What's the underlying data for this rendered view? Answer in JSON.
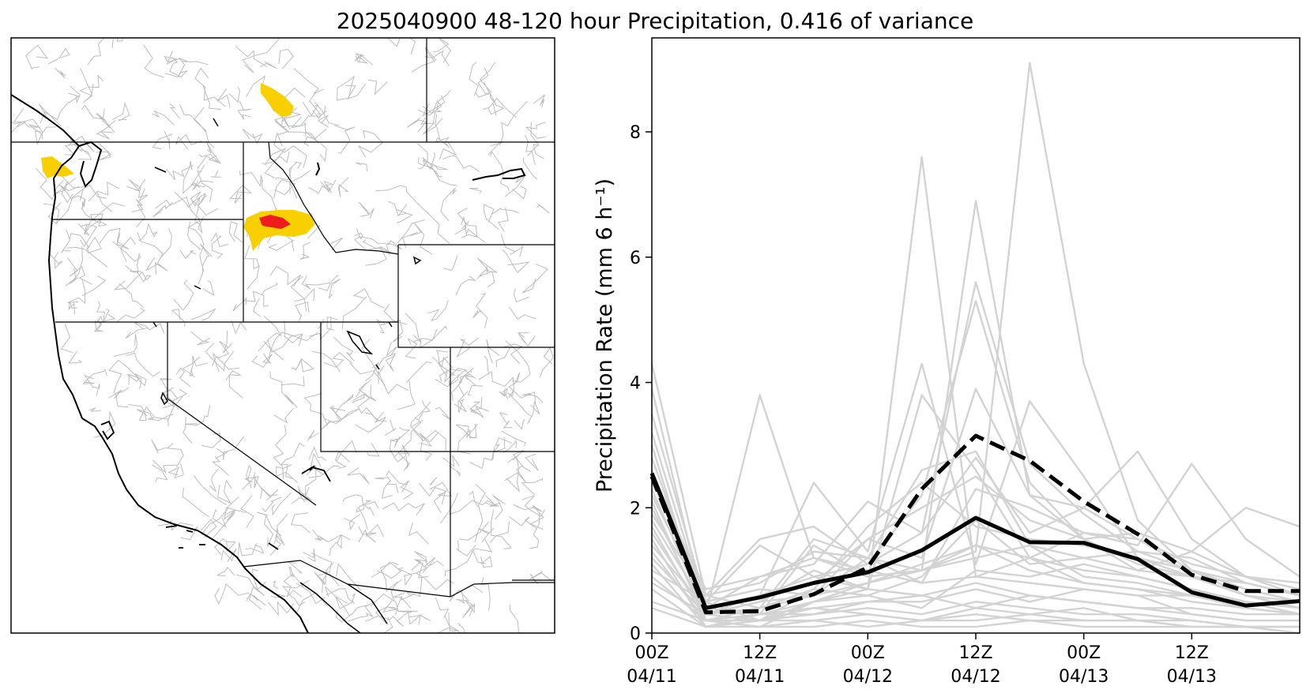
{
  "figure_title": "2025040900 48-120 hour Precipitation, 0.416 of variance",
  "map": {
    "highlight_colors": {
      "moderate": "#f8d000",
      "high": "#ee1c1c"
    },
    "basin_line_color": "#bdbdbd",
    "border_color": "#000000"
  },
  "chart_data": {
    "type": "line",
    "title": "",
    "xlabel": "",
    "ylabel": "Precipitation Rate (mm 6 h⁻¹)",
    "ylim": [
      0,
      9.5
    ],
    "yticks": [
      0,
      2,
      4,
      6,
      8
    ],
    "x": [
      0,
      6,
      12,
      18,
      24,
      30,
      36,
      42,
      48,
      54,
      60,
      66,
      72
    ],
    "xlim": [
      0,
      72
    ],
    "xticks": [
      0,
      12,
      24,
      36,
      48,
      60
    ],
    "xtick_labels": [
      [
        "00Z",
        "04/11"
      ],
      [
        "12Z",
        "04/11"
      ],
      [
        "00Z",
        "04/12"
      ],
      [
        "12Z",
        "04/12"
      ],
      [
        "00Z",
        "04/13"
      ],
      [
        "12Z",
        "04/13"
      ]
    ],
    "grid": false,
    "legend": "none",
    "member_color": "#d3d3d3",
    "members": [
      [
        4.3,
        0.6,
        0.4,
        1.5,
        1.2,
        1.0,
        1.4,
        1.2,
        1.0,
        0.9,
        0.7,
        0.5,
        0.4
      ],
      [
        3.9,
        0.3,
        3.8,
        1.2,
        1.0,
        0.8,
        0.9,
        0.8,
        0.7,
        0.6,
        0.6,
        0.5,
        0.3
      ],
      [
        3.5,
        0.5,
        0.2,
        0.5,
        0.7,
        7.6,
        0.9,
        1.2,
        0.8,
        0.7,
        0.6,
        0.4,
        0.3
      ],
      [
        3.2,
        0.4,
        0.3,
        1.4,
        0.9,
        1.0,
        6.9,
        2.2,
        1.5,
        1.1,
        0.9,
        0.6,
        0.4
      ],
      [
        3.0,
        0.2,
        0.1,
        0.5,
        0.8,
        1.0,
        1.3,
        9.1,
        4.3,
        1.8,
        1.0,
        0.7,
        0.5
      ],
      [
        2.8,
        0.4,
        0.6,
        2.4,
        1.3,
        4.3,
        1.1,
        3.7,
        2.5,
        1.2,
        0.9,
        0.8,
        0.6
      ],
      [
        2.6,
        0.6,
        1.5,
        1.7,
        1.1,
        1.6,
        5.6,
        2.7,
        1.9,
        1.3,
        1.0,
        0.8,
        0.6
      ],
      [
        2.4,
        0.7,
        0.9,
        1.1,
        2.1,
        1.6,
        2.8,
        1.6,
        2.0,
        2.9,
        1.5,
        0.9,
        0.6
      ],
      [
        2.3,
        0.3,
        0.5,
        1.0,
        0.7,
        3.8,
        2.6,
        1.2,
        1.6,
        1.4,
        2.7,
        1.5,
        0.9
      ],
      [
        2.2,
        0.5,
        1.4,
        0.9,
        1.1,
        2.2,
        5.3,
        2.4,
        1.5,
        1.0,
        1.3,
        2.0,
        1.7
      ],
      [
        2.1,
        0.2,
        0.4,
        0.6,
        1.5,
        1.2,
        3.9,
        2.2,
        2.0,
        1.5,
        1.1,
        0.9,
        0.8
      ],
      [
        2.0,
        0.3,
        0.2,
        0.7,
        1.7,
        2.4,
        1.7,
        1.5,
        1.4,
        1.2,
        1.0,
        0.7,
        0.5
      ],
      [
        1.9,
        0.6,
        0.8,
        1.3,
        1.2,
        2.6,
        2.9,
        1.4,
        1.2,
        1.3,
        1.2,
        0.8,
        0.6
      ],
      [
        1.8,
        0.4,
        0.6,
        0.8,
        1.5,
        2.0,
        2.5,
        1.8,
        1.5,
        1.6,
        1.3,
        0.9,
        0.7
      ],
      [
        1.7,
        0.2,
        0.3,
        0.5,
        0.6,
        0.9,
        1.8,
        1.1,
        1.2,
        1.0,
        0.9,
        0.6,
        0.4
      ],
      [
        1.6,
        0.3,
        0.5,
        0.6,
        0.8,
        1.1,
        1.4,
        1.0,
        0.8,
        0.7,
        0.5,
        0.4,
        0.3
      ],
      [
        1.5,
        0.1,
        0.2,
        0.4,
        0.5,
        0.6,
        0.8,
        0.6,
        0.5,
        0.4,
        0.3,
        0.2,
        0.2
      ],
      [
        1.4,
        0.4,
        0.9,
        1.2,
        0.9,
        1.0,
        1.2,
        1.4,
        0.9,
        0.8,
        0.6,
        0.5,
        0.4
      ],
      [
        1.3,
        0.2,
        0.3,
        0.3,
        0.4,
        0.3,
        0.5,
        0.4,
        0.3,
        0.3,
        0.2,
        0.1,
        0.1
      ],
      [
        1.2,
        0.3,
        0.4,
        0.7,
        0.6,
        0.4,
        1.0,
        0.9,
        1.1,
        0.9,
        0.7,
        0.5,
        0.3
      ],
      [
        1.1,
        0.1,
        0.1,
        0.2,
        0.3,
        0.2,
        0.3,
        0.2,
        0.2,
        0.2,
        0.1,
        0.1,
        0.1
      ],
      [
        1.0,
        0.5,
        0.7,
        0.6,
        1.2,
        0.8,
        2.3,
        2.0,
        1.6,
        1.5,
        1.0,
        0.6,
        0.5
      ],
      [
        0.9,
        0.2,
        0.2,
        0.3,
        0.5,
        0.5,
        0.7,
        0.5,
        0.7,
        0.6,
        0.3,
        0.2,
        0.2
      ],
      [
        0.8,
        0.3,
        0.6,
        0.9,
        0.7,
        0.6,
        0.4,
        0.6,
        0.5,
        0.4,
        0.4,
        0.3,
        0.3
      ],
      [
        0.7,
        0.1,
        0.3,
        0.4,
        0.3,
        0.2,
        0.2,
        0.3,
        0.4,
        0.2,
        0.2,
        0.1,
        0.1
      ],
      [
        0.5,
        0.2,
        0.1,
        0.1,
        0.2,
        0.1,
        0.1,
        0.2,
        0.1,
        0.1,
        0.1,
        0.1,
        0.1
      ],
      [
        0.4,
        0.1,
        0.2,
        0.2,
        0.1,
        0.2,
        0.4,
        0.3,
        0.2,
        0.2,
        0.1,
        0.1,
        0.0
      ]
    ],
    "series": [
      {
        "style": "solid",
        "color": "#000000",
        "values": [
          2.55,
          0.4,
          0.57,
          0.8,
          0.97,
          1.32,
          1.84,
          1.45,
          1.44,
          1.18,
          0.65,
          0.44,
          0.51
        ]
      },
      {
        "style": "dashed",
        "color": "#000000",
        "values": [
          2.5,
          0.33,
          0.35,
          0.62,
          1.05,
          2.3,
          3.15,
          2.75,
          2.1,
          1.58,
          0.93,
          0.67,
          0.67
        ]
      }
    ]
  }
}
